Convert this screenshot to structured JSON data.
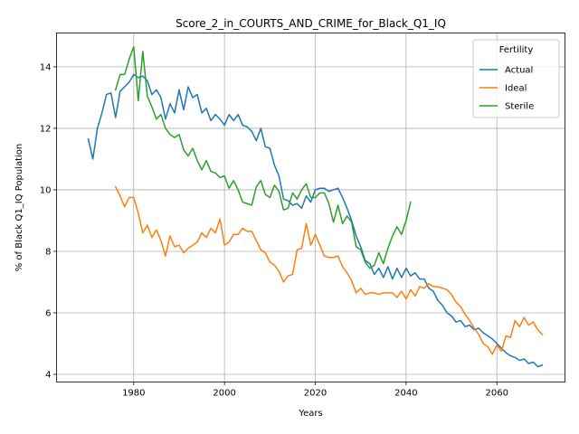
{
  "chart_data": {
    "type": "line",
    "title": "Score_2_in_COURTS_AND_CRIME_for_Black_Q1_IQ",
    "xlabel": "Years",
    "ylabel": "% of Black Q1_IQ Population",
    "xlim": [
      1963,
      2075
    ],
    "ylim": [
      3.75,
      15.1
    ],
    "xticks": [
      1980,
      2000,
      2020,
      2040,
      2060
    ],
    "yticks": [
      4,
      6,
      8,
      10,
      12,
      14
    ],
    "grid": true,
    "legend": {
      "title": "Fertility",
      "position": "top-right"
    },
    "series": [
      {
        "name": "Actual",
        "color": "#1f77b4",
        "x": [
          1970,
          1971,
          1972,
          1973,
          1974,
          1975,
          1976,
          1977,
          1978,
          1979,
          1980,
          1981,
          1982,
          1983,
          1984,
          1985,
          1986,
          1987,
          1988,
          1989,
          1990,
          1991,
          1992,
          1993,
          1994,
          1995,
          1996,
          1997,
          1998,
          1999,
          2000,
          2001,
          2002,
          2003,
          2004,
          2005,
          2006,
          2007,
          2008,
          2009,
          2010,
          2011,
          2012,
          2013,
          2014,
          2015,
          2016,
          2017,
          2018,
          2019,
          2020,
          2021,
          2022,
          2023,
          2024,
          2025,
          2026,
          2027,
          2028,
          2029,
          2030,
          2031,
          2032,
          2033,
          2034,
          2035,
          2036,
          2037,
          2038,
          2039,
          2040,
          2041,
          2042,
          2043,
          2044,
          2045,
          2046,
          2047,
          2048,
          2049,
          2050,
          2051,
          2052,
          2053,
          2054,
          2055,
          2056,
          2057,
          2058,
          2059,
          2060,
          2061,
          2062,
          2063,
          2064,
          2065,
          2066,
          2067,
          2068,
          2069,
          2070
        ],
        "values": [
          11.65,
          11.0,
          12.0,
          12.5,
          13.1,
          13.15,
          12.35,
          13.2,
          13.35,
          13.5,
          13.75,
          13.65,
          13.7,
          13.55,
          13.1,
          13.25,
          13.0,
          12.3,
          12.8,
          12.5,
          13.25,
          12.6,
          13.35,
          13.0,
          13.1,
          12.5,
          12.65,
          12.25,
          12.45,
          12.3,
          12.1,
          12.45,
          12.25,
          12.45,
          12.1,
          12.05,
          11.9,
          11.6,
          12.0,
          11.4,
          11.35,
          10.8,
          10.45,
          9.7,
          9.65,
          9.5,
          9.55,
          9.4,
          9.8,
          9.6,
          10.0,
          10.05,
          10.05,
          9.95,
          10.0,
          10.05,
          9.75,
          9.4,
          9.0,
          8.5,
          8.15,
          7.7,
          7.6,
          7.25,
          7.45,
          7.15,
          7.5,
          7.1,
          7.45,
          7.15,
          7.45,
          7.2,
          7.3,
          7.1,
          7.1,
          6.8,
          6.7,
          6.4,
          6.25,
          6.0,
          5.9,
          5.7,
          5.75,
          5.55,
          5.6,
          5.45,
          5.5,
          5.35,
          5.25,
          5.15,
          5.0,
          4.85,
          4.7,
          4.6,
          4.55,
          4.45,
          4.5,
          4.35,
          4.4,
          4.25,
          4.3
        ]
      },
      {
        "name": "Ideal",
        "color": "#ff7f0e",
        "x": [
          1976,
          1977,
          1978,
          1979,
          1980,
          1981,
          1982,
          1983,
          1984,
          1985,
          1986,
          1987,
          1988,
          1989,
          1990,
          1991,
          1992,
          1993,
          1994,
          1995,
          1996,
          1997,
          1998,
          1999,
          2000,
          2001,
          2002,
          2003,
          2004,
          2005,
          2006,
          2007,
          2008,
          2009,
          2010,
          2011,
          2012,
          2013,
          2014,
          2015,
          2016,
          2017,
          2018,
          2019,
          2020,
          2021,
          2022,
          2023,
          2024,
          2025,
          2026,
          2027,
          2028,
          2029,
          2030,
          2031,
          2032,
          2033,
          2034,
          2035,
          2036,
          2037,
          2038,
          2039,
          2040,
          2041,
          2042,
          2043,
          2044,
          2045,
          2046,
          2047,
          2048,
          2049,
          2050,
          2051,
          2052,
          2053,
          2054,
          2055,
          2056,
          2057,
          2058,
          2059,
          2060,
          2061,
          2062,
          2063,
          2064,
          2065,
          2066,
          2067,
          2068,
          2069,
          2070
        ],
        "values": [
          10.1,
          9.8,
          9.45,
          9.75,
          9.75,
          9.25,
          8.6,
          8.85,
          8.45,
          8.7,
          8.35,
          7.85,
          8.5,
          8.15,
          8.2,
          7.95,
          8.1,
          8.2,
          8.3,
          8.6,
          8.45,
          8.75,
          8.6,
          9.05,
          8.2,
          8.3,
          8.55,
          8.55,
          8.75,
          8.65,
          8.65,
          8.35,
          8.05,
          7.95,
          7.65,
          7.55,
          7.35,
          7.0,
          7.2,
          7.25,
          8.05,
          8.1,
          8.9,
          8.2,
          8.55,
          8.2,
          7.85,
          7.8,
          7.8,
          7.85,
          7.5,
          7.3,
          7.05,
          6.65,
          6.8,
          6.6,
          6.65,
          6.65,
          6.6,
          6.65,
          6.65,
          6.65,
          6.5,
          6.7,
          6.45,
          6.75,
          6.55,
          6.85,
          6.8,
          6.95,
          6.85,
          6.85,
          6.8,
          6.75,
          6.6,
          6.35,
          6.2,
          5.95,
          5.75,
          5.5,
          5.3,
          5.0,
          4.9,
          4.65,
          4.95,
          4.75,
          5.25,
          5.2,
          5.75,
          5.55,
          5.85,
          5.6,
          5.7,
          5.45,
          5.3
        ]
      },
      {
        "name": "Sterile",
        "color": "#2ca02c",
        "x": [
          1976,
          1977,
          1978,
          1979,
          1980,
          1981,
          1982,
          1983,
          1984,
          1985,
          1986,
          1987,
          1988,
          1989,
          1990,
          1991,
          1992,
          1993,
          1994,
          1995,
          1996,
          1997,
          1998,
          1999,
          2000,
          2001,
          2002,
          2003,
          2004,
          2005,
          2006,
          2007,
          2008,
          2009,
          2010,
          2011,
          2012,
          2013,
          2014,
          2015,
          2016,
          2017,
          2018,
          2019,
          2020,
          2021,
          2022,
          2023,
          2024,
          2025,
          2026,
          2027,
          2028,
          2029,
          2030,
          2031,
          2032,
          2033,
          2034,
          2035,
          2036,
          2037,
          2038,
          2039,
          2040,
          2041
        ],
        "values": [
          13.25,
          13.75,
          13.75,
          14.25,
          14.65,
          12.9,
          14.5,
          13.05,
          12.7,
          12.3,
          12.45,
          12.0,
          11.8,
          11.7,
          11.8,
          11.3,
          11.1,
          11.35,
          10.95,
          10.65,
          10.95,
          10.6,
          10.55,
          10.4,
          10.45,
          10.05,
          10.3,
          10.0,
          9.6,
          9.55,
          9.5,
          10.1,
          10.3,
          9.85,
          9.75,
          10.15,
          9.95,
          9.35,
          9.4,
          9.9,
          9.7,
          10.0,
          10.2,
          9.75,
          9.75,
          9.9,
          9.9,
          9.55,
          8.95,
          9.5,
          8.9,
          9.15,
          8.95,
          8.15,
          8.05,
          7.65,
          7.45,
          7.55,
          7.95,
          7.6,
          8.1,
          8.5,
          8.8,
          8.55,
          9.0,
          9.6
        ]
      }
    ]
  }
}
